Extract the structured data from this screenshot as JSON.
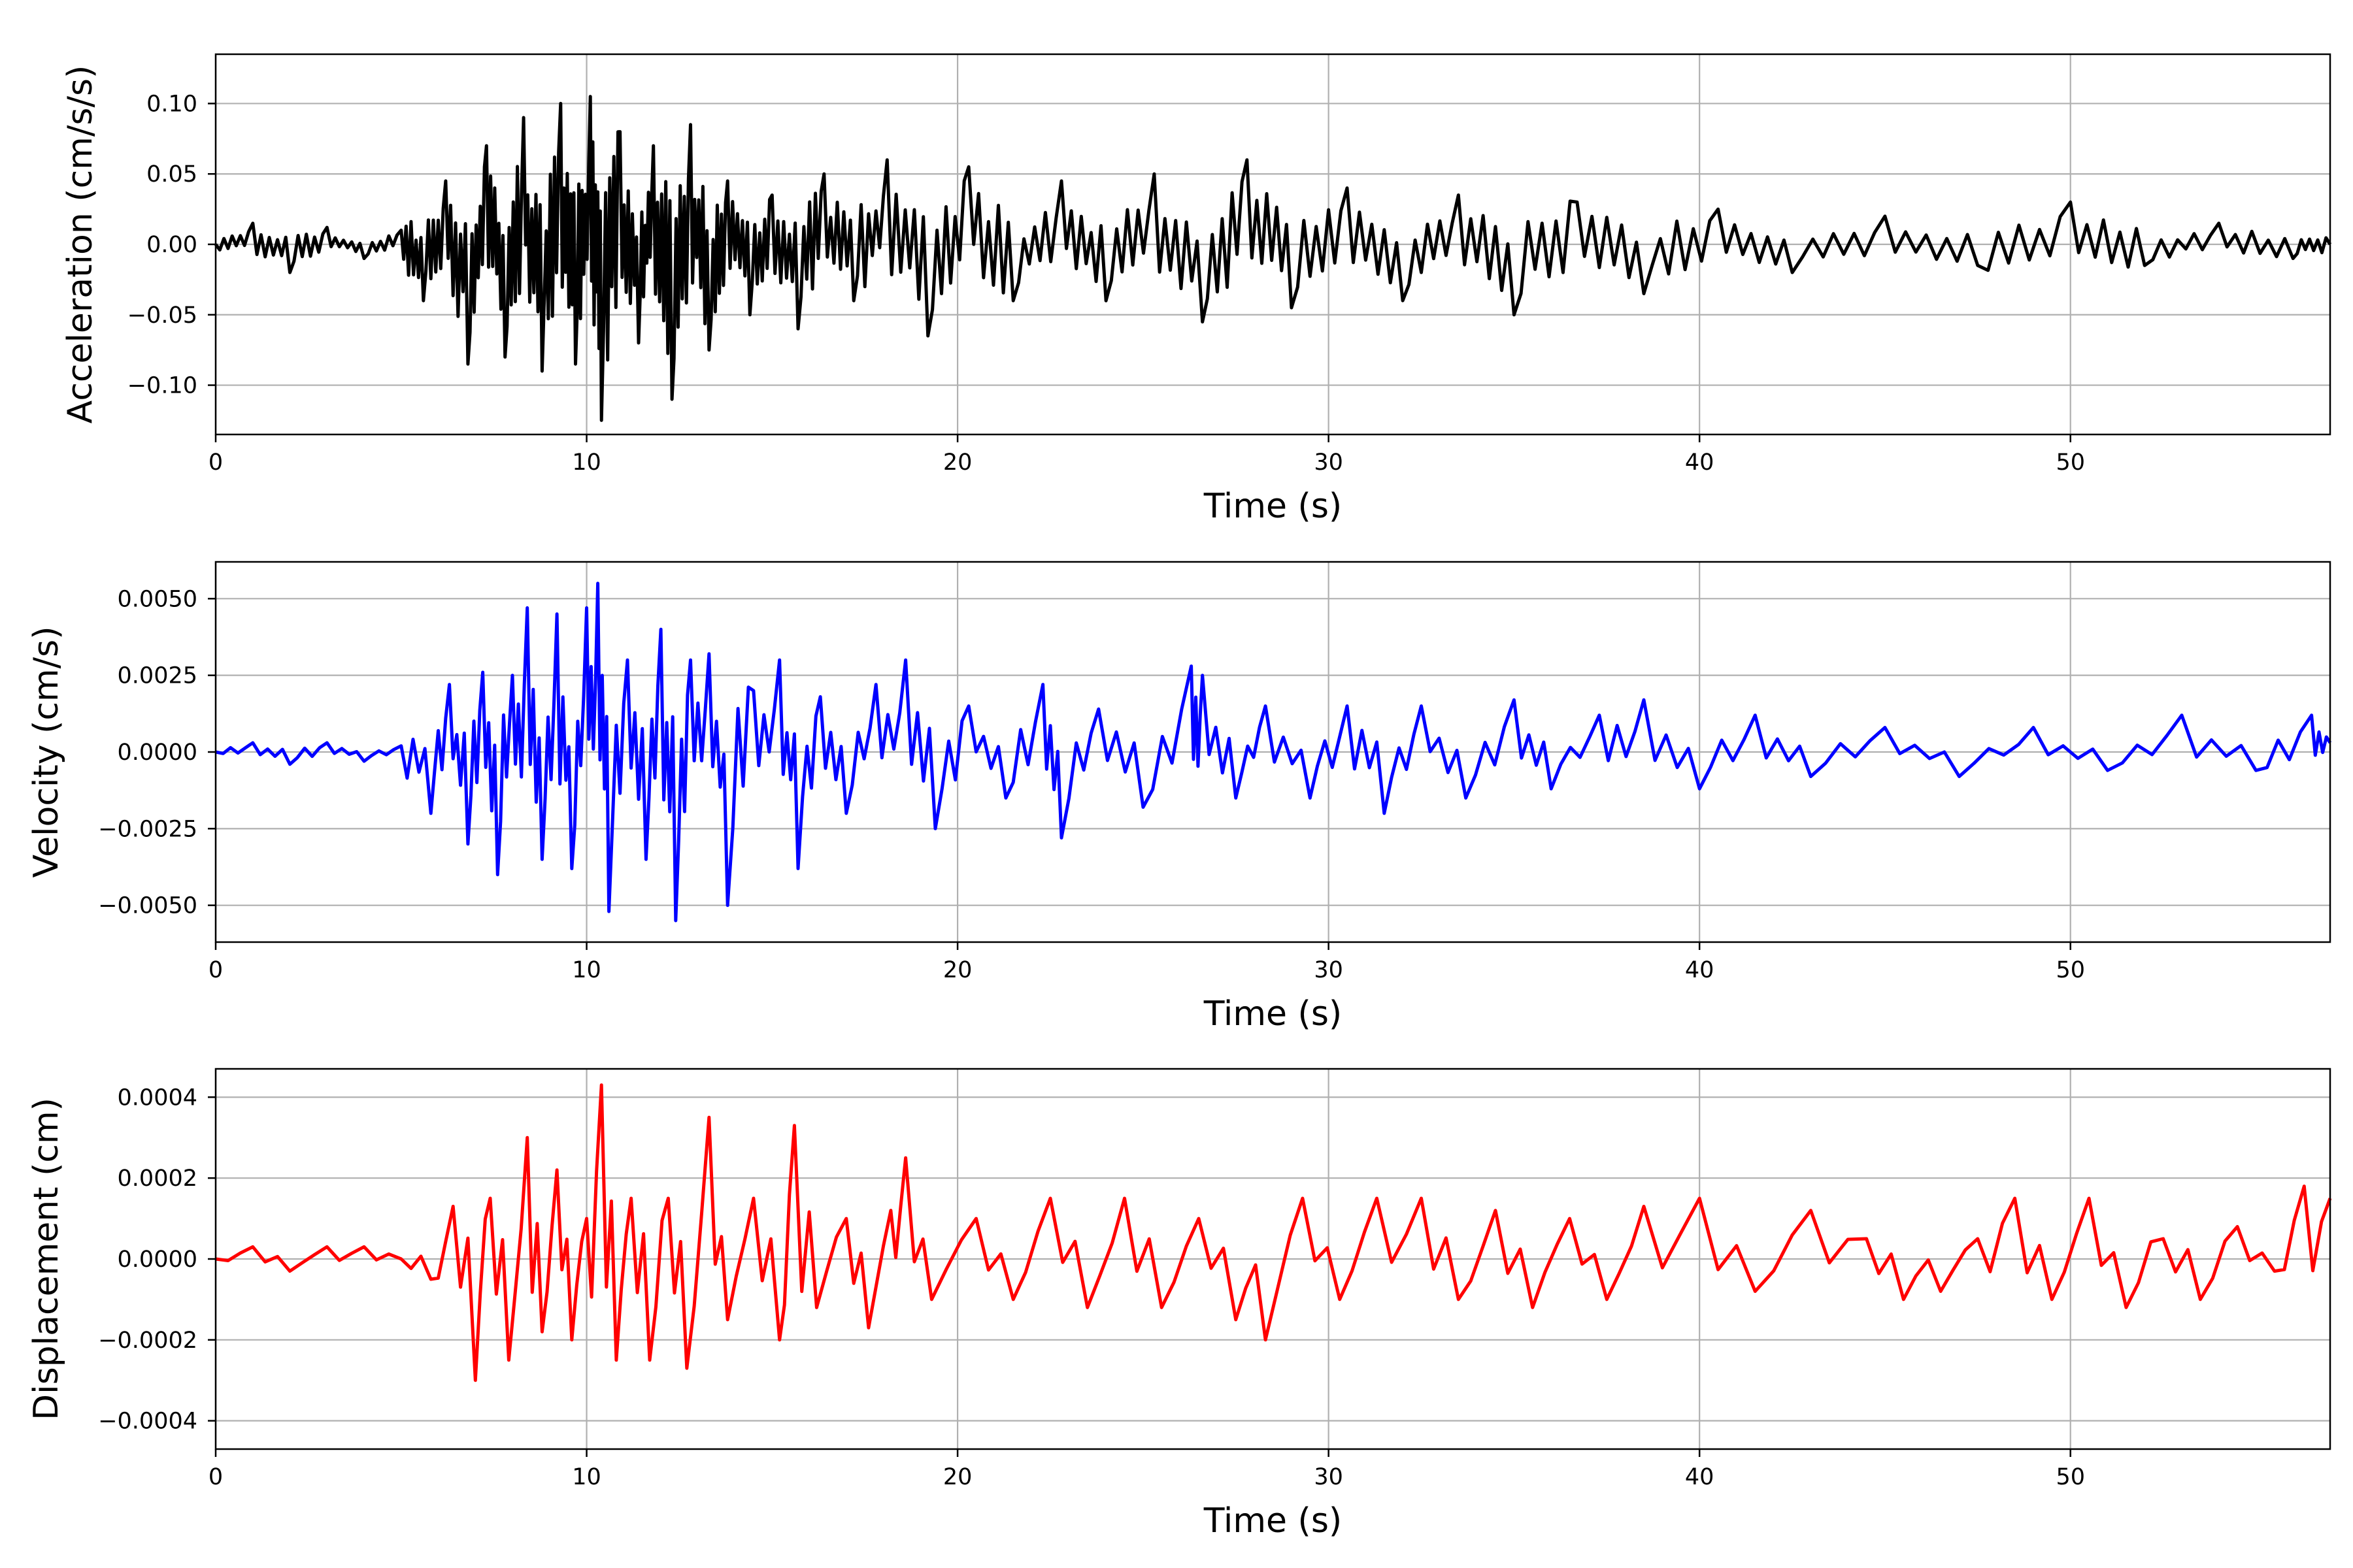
{
  "chart_data": [
    {
      "type": "line",
      "xlabel": "Time (s)",
      "ylabel": "Acceleration (cm/s/s)",
      "xlim": [
        0,
        57
      ],
      "ylim": [
        -0.135,
        0.135
      ],
      "xticks": [
        0,
        10,
        20,
        30,
        40,
        50
      ],
      "yticks": [
        0.1,
        0.05,
        0.0,
        -0.05,
        -0.1
      ],
      "ytick_labels": [
        "0.10",
        "0.05",
        "0.00",
        "−0.05",
        "−0.10"
      ],
      "grid": true,
      "series": [
        {
          "color": "#000000",
          "x": [
            0,
            1,
            2,
            3,
            4,
            5,
            5.6,
            6.2,
            6.8,
            7.3,
            7.8,
            8.3,
            8.8,
            9.3,
            9.7,
            10.1,
            10.4,
            10.9,
            11.4,
            11.8,
            12.3,
            12.8,
            13.3,
            13.8,
            14.4,
            15.0,
            15.7,
            16.4,
            17.2,
            18.1,
            19.2,
            20.3,
            21.5,
            22.8,
            24.0,
            25.3,
            26.6,
            27.8,
            29.0,
            30.5,
            32.0,
            33.5,
            35.0,
            36.7,
            38.5,
            40.5,
            42.5,
            45.0,
            47.5,
            50.0,
            52.0,
            54.0,
            56.0,
            57.0
          ],
          "y": [
            0.0,
            0.015,
            -0.02,
            0.012,
            -0.01,
            0.01,
            -0.04,
            0.045,
            -0.085,
            0.07,
            -0.08,
            0.09,
            -0.09,
            0.1,
            -0.085,
            0.105,
            -0.125,
            0.08,
            -0.07,
            0.07,
            -0.11,
            0.085,
            -0.075,
            0.045,
            -0.05,
            0.035,
            -0.06,
            0.05,
            -0.04,
            0.06,
            -0.065,
            0.055,
            -0.04,
            0.045,
            -0.04,
            0.05,
            -0.055,
            0.06,
            -0.045,
            0.04,
            -0.04,
            0.035,
            -0.05,
            0.03,
            -0.035,
            0.025,
            -0.02,
            0.02,
            -0.015,
            0.03,
            -0.015,
            0.015,
            -0.01,
            0.0
          ]
        }
      ]
    },
    {
      "type": "line",
      "xlabel": "Time (s)",
      "ylabel": "Velocity (cm/s)",
      "xlim": [
        0,
        57
      ],
      "ylim": [
        -0.0062,
        0.0062
      ],
      "xticks": [
        0,
        10,
        20,
        30,
        40,
        50
      ],
      "yticks": [
        0.005,
        0.0025,
        0.0,
        -0.0025,
        -0.005
      ],
      "ytick_labels": [
        "0.0050",
        "0.0025",
        "0.0000",
        "−0.0025",
        "−0.0050"
      ],
      "grid": true,
      "series": [
        {
          "color": "#0000ff",
          "x": [
            0,
            1,
            2,
            3,
            4,
            5,
            5.8,
            6.3,
            6.8,
            7.2,
            7.6,
            8.0,
            8.4,
            8.8,
            9.2,
            9.6,
            10.0,
            10.3,
            10.6,
            11.1,
            11.6,
            12.0,
            12.4,
            12.8,
            13.3,
            13.8,
            14.5,
            15.2,
            15.7,
            16.3,
            17.0,
            17.8,
            18.6,
            19.4,
            20.3,
            21.3,
            22.3,
            22.8,
            23.8,
            25.0,
            26.3,
            26.6,
            27.5,
            28.3,
            29.5,
            30.5,
            31.5,
            32.5,
            33.7,
            35.0,
            36.0,
            37.3,
            38.5,
            40.0,
            41.5,
            43.0,
            45.0,
            47.0,
            49.0,
            51.0,
            53.0,
            55.0,
            56.5,
            57.0
          ],
          "y": [
            0.0,
            0.0003,
            -0.0004,
            0.0003,
            -0.0003,
            0.0002,
            -0.002,
            0.0022,
            -0.003,
            0.0026,
            -0.004,
            0.0025,
            0.0047,
            -0.0035,
            0.0045,
            -0.0038,
            0.0047,
            0.0055,
            -0.0052,
            0.003,
            -0.0035,
            0.004,
            -0.0055,
            0.003,
            0.0032,
            -0.005,
            0.002,
            0.003,
            -0.0038,
            0.0018,
            -0.002,
            0.0022,
            0.003,
            -0.0025,
            0.0015,
            -0.0015,
            0.0022,
            -0.0028,
            0.0014,
            -0.0018,
            0.0028,
            0.0025,
            -0.0015,
            0.0015,
            -0.0015,
            0.0015,
            -0.002,
            0.0015,
            -0.0015,
            0.0017,
            -0.0012,
            0.0012,
            0.0017,
            -0.0012,
            0.0012,
            -0.0008,
            0.0008,
            -0.0008,
            0.0008,
            -0.0006,
            0.0012,
            -0.0006,
            0.0012,
            0.0003
          ]
        }
      ]
    },
    {
      "type": "line",
      "xlabel": "Time (s)",
      "ylabel": "Displacement (cm)",
      "xlim": [
        0,
        57
      ],
      "ylim": [
        -0.00047,
        0.00047
      ],
      "xticks": [
        0,
        10,
        20,
        30,
        40,
        50
      ],
      "yticks": [
        0.0004,
        0.0002,
        0.0,
        -0.0002,
        -0.0004
      ],
      "ytick_labels": [
        "0.0004",
        "0.0002",
        "0.0000",
        "−0.0002",
        "−0.0004"
      ],
      "grid": true,
      "series": [
        {
          "color": "#ff0000",
          "x": [
            0,
            1,
            2,
            3,
            4,
            5,
            5.8,
            6.4,
            7.0,
            7.4,
            7.9,
            8.4,
            8.8,
            9.2,
            9.6,
            10.0,
            10.4,
            10.8,
            11.2,
            11.7,
            12.2,
            12.7,
            13.3,
            13.8,
            14.5,
            15.2,
            15.6,
            16.2,
            17.0,
            17.6,
            18.2,
            18.6,
            19.3,
            20.5,
            21.5,
            22.5,
            23.5,
            24.5,
            25.5,
            26.5,
            27.5,
            28.3,
            29.3,
            30.3,
            31.3,
            32.5,
            33.5,
            34.5,
            35.5,
            36.5,
            37.5,
            38.5,
            40.0,
            41.5,
            43.0,
            44.5,
            45.5,
            46.5,
            47.5,
            48.5,
            49.5,
            50.5,
            51.5,
            52.5,
            53.5,
            54.5,
            55.5,
            56.3,
            57.0
          ],
          "y": [
            0.0,
            3e-05,
            -3e-05,
            3e-05,
            3e-05,
            0.0,
            -5e-05,
            0.00013,
            -0.0003,
            0.00015,
            -0.00025,
            0.0003,
            -0.00018,
            0.00022,
            -0.0002,
            0.0001,
            0.00043,
            -0.00025,
            0.00015,
            -0.00025,
            0.00015,
            -0.00027,
            0.00035,
            -0.00015,
            0.00015,
            -0.0002,
            0.00033,
            -0.00012,
            0.0001,
            -0.00017,
            0.00012,
            0.00025,
            -0.0001,
            0.0001,
            -0.0001,
            0.00015,
            -0.00012,
            0.00015,
            -0.00012,
            0.0001,
            -0.00015,
            -0.0002,
            0.00015,
            -0.0001,
            0.00015,
            0.00015,
            -0.0001,
            0.00012,
            -0.00012,
            0.0001,
            -0.0001,
            0.00013,
            0.00015,
            -8e-05,
            0.00012,
            5e-05,
            -0.0001,
            -8e-05,
            5e-05,
            0.00015,
            -0.0001,
            0.00015,
            -0.00012,
            5e-05,
            -0.0001,
            8e-05,
            -3e-05,
            0.00018,
            0.00015
          ]
        }
      ]
    }
  ]
}
